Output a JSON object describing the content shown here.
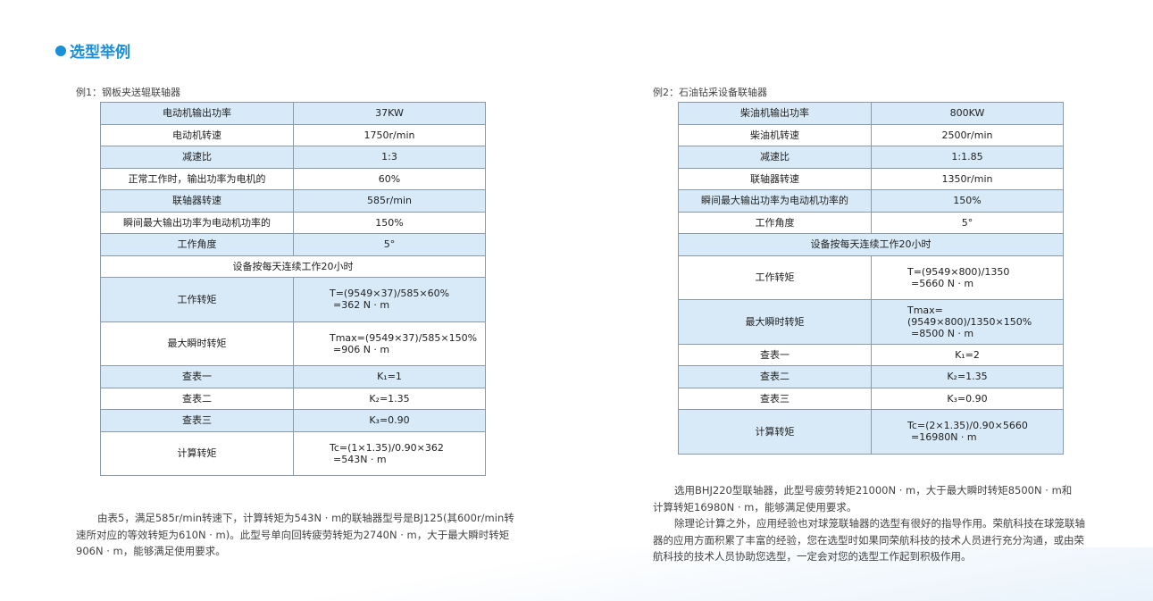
{
  "title": "选型举例",
  "colors": {
    "accent": "#1a8fd8",
    "row_blue": "#d8eaf8"
  },
  "example1": {
    "caption": "例1：钢板夹送辊联轴器",
    "rows": [
      {
        "k": "电动机输出功率",
        "v": "37KW"
      },
      {
        "k": "电动机转速",
        "v": "1750r/min"
      },
      {
        "k": "减速比",
        "v": "1:3"
      },
      {
        "k": "正常工作时，输出功率为电机的",
        "v": "60%"
      },
      {
        "k": "联轴器转速",
        "v": "585r/min"
      },
      {
        "k": "瞬间最大输出功率为电动机功率的",
        "v": "150%"
      },
      {
        "k": "工作角度",
        "v": "5°"
      },
      {
        "span": "设备按每天连续工作20小时"
      },
      {
        "k": "工作转矩",
        "v1": "T=(9549×37)/585×60%",
        "v2": "=362 N · m"
      },
      {
        "k": "最大瞬时转矩",
        "v1": "Tmax=(9549×37)/585×150%",
        "v2": "=906 N · m"
      },
      {
        "k": "查表一",
        "v": "K₁=1"
      },
      {
        "k": "查表二",
        "v": "K₂=1.35"
      },
      {
        "k": "查表三",
        "v": "K₃=0.90"
      },
      {
        "k": "计算转矩",
        "v1": "Tc=(1×1.35)/0.90×362",
        "v2": "=543N · m"
      }
    ],
    "paragraph": "由表5，满足585r/min转速下，计算转矩为543N · m的联轴器型号是BJ125(其600r/min转速所对应的等效转矩为610N · m)。此型号单向回转疲劳转矩为2740N · m，大于最大瞬时转矩906N · m，能够满足使用要求。"
  },
  "example2": {
    "caption": "例2：石油钻采设备联轴器",
    "rows": [
      {
        "k": "柴油机输出功率",
        "v": "800KW"
      },
      {
        "k": "柴油机转速",
        "v": "2500r/min"
      },
      {
        "k": "减速比",
        "v": "1:1.85"
      },
      {
        "k": "联轴器转速",
        "v": "1350r/min"
      },
      {
        "k": "瞬间最大输出功率为电动机功率的",
        "v": "150%"
      },
      {
        "k": "工作角度",
        "v": "5°"
      },
      {
        "span": "设备按每天连续工作20小时"
      },
      {
        "k": "工作转矩",
        "v1": "T=(9549×800)/1350",
        "v2": "=5660 N · m"
      },
      {
        "k": "最大瞬时转矩",
        "v1": "Tmax=(9549×800)/1350×150%",
        "v2": "=8500 N · m"
      },
      {
        "k": "查表一",
        "v": "K₁=2"
      },
      {
        "k": "查表二",
        "v": "K₂=1.35"
      },
      {
        "k": "查表三",
        "v": "K₃=0.90"
      },
      {
        "k": "计算转矩",
        "v1": "Tc=(2×1.35)/0.90×5660",
        "v2": "=16980N · m"
      }
    ],
    "paragraph1": "选用BHJ220型联轴器，此型号疲劳转矩21000N · m，大于最大瞬时转矩8500N · m和计算转矩16980N · m，能够满足使用要求。",
    "paragraph2": "除理论计算之外，应用经验也对球笼联轴器的选型有很好的指导作用。荣航科技在球笼联轴器的应用方面积累了丰富的经验，您在选型时如果同荣航科技的技术人员进行充分沟通，或由荣航科技的技术人员协助您选型，一定会对您的选型工作起到积极作用。"
  }
}
